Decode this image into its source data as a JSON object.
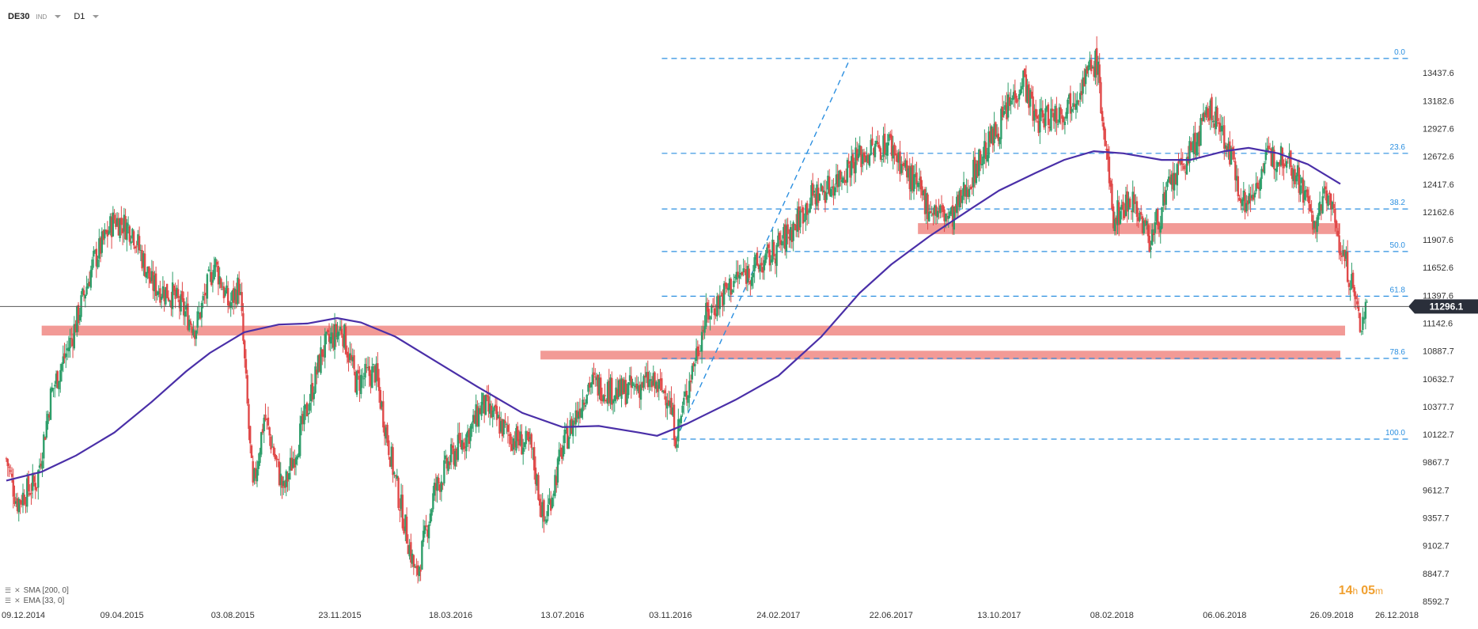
{
  "header": {
    "symbol": "DE30",
    "symbol_type": "IND",
    "timeframe": "D1"
  },
  "countdown": {
    "hours": "14",
    "hours_unit": "h",
    "minutes": "05",
    "minutes_unit": "m"
  },
  "indicators": [
    {
      "label": "SMA [200, 0]"
    },
    {
      "label": "EMA [33, 0]"
    }
  ],
  "colors": {
    "up_candle": "#2e9e6a",
    "down_candle": "#e04848",
    "sma_line": "#4a2fa8",
    "fib_line": "#2b8fe0",
    "zone": "#f29a96",
    "current_price_bg": "#2a2f3a",
    "countdown": "#f0a030"
  },
  "chart_data": {
    "type": "candlestick",
    "instrument": "DE30",
    "timeframe": "D1",
    "ylim": [
      8592.7,
      13692.6
    ],
    "y_ticks": [
      "13437.6",
      "13182.6",
      "12927.6",
      "12672.6",
      "12417.6",
      "12162.6",
      "11907.6",
      "11652.6",
      "11397.6",
      "11142.6",
      "10887.7",
      "10632.7",
      "10377.7",
      "10122.7",
      "9867.7",
      "9612.7",
      "9357.7",
      "9102.7",
      "8847.7",
      "8592.7"
    ],
    "x_ticks": [
      "09.12.2014",
      "09.04.2015",
      "03.08.2015",
      "23.11.2015",
      "18.03.2016",
      "13.07.2016",
      "03.11.2016",
      "24.02.2017",
      "22.06.2017",
      "13.10.2017",
      "08.02.2018",
      "06.06.2018",
      "26.09.2018",
      "26.12.2018"
    ],
    "current_price": "11296.1",
    "fibonacci": [
      {
        "level": "0.0",
        "price": 13570
      },
      {
        "level": "23.6",
        "price": 12700
      },
      {
        "level": "38.2",
        "price": 12190
      },
      {
        "level": "50.0",
        "price": 11800
      },
      {
        "level": "61.8",
        "price": 11390
      },
      {
        "level": "78.6",
        "price": 10820
      },
      {
        "level": "100.0",
        "price": 10080
      }
    ],
    "zones": [
      {
        "from": "2017-07-20",
        "to": "2018-10-05",
        "low": 11960,
        "high": 12060
      },
      {
        "from": "2015-01-15",
        "to": "2018-10-10",
        "low": 11030,
        "high": 11120
      },
      {
        "from": "2016-06-20",
        "to": "2018-10-05",
        "low": 10810,
        "high": 10890
      }
    ],
    "sma_200": [
      [
        "2014-12-09",
        9700
      ],
      [
        "2015-01-15",
        9780
      ],
      [
        "2015-02-20",
        9930
      ],
      [
        "2015-04-01",
        10140
      ],
      [
        "2015-05-10",
        10420
      ],
      [
        "2015-06-15",
        10700
      ],
      [
        "2015-07-10",
        10870
      ],
      [
        "2015-08-15",
        11060
      ],
      [
        "2015-09-20",
        11130
      ],
      [
        "2015-10-20",
        11140
      ],
      [
        "2015-11-20",
        11190
      ],
      [
        "2015-12-15",
        11150
      ],
      [
        "2016-01-20",
        11020
      ],
      [
        "2016-03-01",
        10800
      ],
      [
        "2016-04-15",
        10560
      ],
      [
        "2016-06-01",
        10320
      ],
      [
        "2016-07-13",
        10190
      ],
      [
        "2016-08-20",
        10200
      ],
      [
        "2016-10-01",
        10140
      ],
      [
        "2016-10-20",
        10110
      ],
      [
        "2016-11-20",
        10220
      ],
      [
        "2017-01-10",
        10440
      ],
      [
        "2017-02-24",
        10660
      ],
      [
        "2017-04-10",
        11020
      ],
      [
        "2017-05-20",
        11420
      ],
      [
        "2017-06-22",
        11680
      ],
      [
        "2017-08-01",
        11940
      ],
      [
        "2017-09-15",
        12200
      ],
      [
        "2017-10-13",
        12360
      ],
      [
        "2017-11-20",
        12520
      ],
      [
        "2017-12-20",
        12640
      ],
      [
        "2018-01-20",
        12720
      ],
      [
        "2018-02-20",
        12700
      ],
      [
        "2018-04-01",
        12640
      ],
      [
        "2018-05-01",
        12640
      ],
      [
        "2018-06-06",
        12720
      ],
      [
        "2018-07-01",
        12750
      ],
      [
        "2018-08-01",
        12700
      ],
      [
        "2018-09-01",
        12600
      ],
      [
        "2018-10-05",
        12420
      ]
    ],
    "price_path": [
      [
        "2014-12-09",
        9900
      ],
      [
        "2014-12-20",
        9500
      ],
      [
        "2015-01-10",
        9700
      ],
      [
        "2015-01-25",
        10500
      ],
      [
        "2015-02-15",
        11000
      ],
      [
        "2015-03-10",
        11700
      ],
      [
        "2015-04-01",
        12100
      ],
      [
        "2015-04-20",
        12000
      ],
      [
        "2015-05-10",
        11500
      ],
      [
        "2015-06-01",
        11400
      ],
      [
        "2015-06-25",
        11100
      ],
      [
        "2015-07-15",
        11700
      ],
      [
        "2015-07-30",
        11300
      ],
      [
        "2015-08-10",
        11500
      ],
      [
        "2015-08-24",
        9600
      ],
      [
        "2015-09-05",
        10300
      ],
      [
        "2015-09-25",
        9600
      ],
      [
        "2015-10-15",
        10200
      ],
      [
        "2015-11-05",
        10900
      ],
      [
        "2015-11-25",
        11100
      ],
      [
        "2015-12-10",
        10600
      ],
      [
        "2015-12-30",
        10700
      ],
      [
        "2016-01-20",
        9700
      ],
      [
        "2016-02-11",
        8800
      ],
      [
        "2016-03-01",
        9600
      ],
      [
        "2016-03-18",
        9900
      ],
      [
        "2016-04-10",
        10200
      ],
      [
        "2016-04-20",
        10400
      ],
      [
        "2016-05-20",
        10100
      ],
      [
        "2016-06-10",
        10000
      ],
      [
        "2016-06-24",
        9300
      ],
      [
        "2016-07-13",
        10000
      ],
      [
        "2016-08-10",
        10600
      ],
      [
        "2016-09-10",
        10500
      ],
      [
        "2016-10-10",
        10600
      ],
      [
        "2016-10-31",
        10500
      ],
      [
        "2016-11-09",
        10100
      ],
      [
        "2016-11-25",
        10700
      ],
      [
        "2016-12-10",
        11200
      ],
      [
        "2017-01-10",
        11550
      ],
      [
        "2017-02-10",
        11700
      ],
      [
        "2017-03-10",
        12000
      ],
      [
        "2017-03-31",
        12300
      ],
      [
        "2017-04-20",
        12400
      ],
      [
        "2017-05-15",
        12650
      ],
      [
        "2017-06-20",
        12800
      ],
      [
        "2017-07-10",
        12500
      ],
      [
        "2017-08-01",
        12200
      ],
      [
        "2017-08-25",
        12100
      ],
      [
        "2017-09-20",
        12600
      ],
      [
        "2017-10-13",
        12950
      ],
      [
        "2017-11-07",
        13400
      ],
      [
        "2017-11-20",
        13000
      ],
      [
        "2017-12-20",
        13100
      ],
      [
        "2018-01-23",
        13550
      ],
      [
        "2018-02-09",
        12100
      ],
      [
        "2018-03-01",
        12300
      ],
      [
        "2018-03-20",
        11900
      ],
      [
        "2018-04-10",
        12400
      ],
      [
        "2018-05-01",
        12700
      ],
      [
        "2018-05-22",
        13100
      ],
      [
        "2018-06-06",
        12850
      ],
      [
        "2018-06-28",
        12200
      ],
      [
        "2018-07-20",
        12650
      ],
      [
        "2018-08-10",
        12700
      ],
      [
        "2018-08-28",
        12350
      ],
      [
        "2018-09-10",
        12000
      ],
      [
        "2018-09-20",
        12400
      ],
      [
        "2018-10-05",
        11850
      ],
      [
        "2018-10-17",
        11500
      ],
      [
        "2018-10-26",
        11100
      ],
      [
        "2018-11-02",
        11350
      ]
    ]
  }
}
